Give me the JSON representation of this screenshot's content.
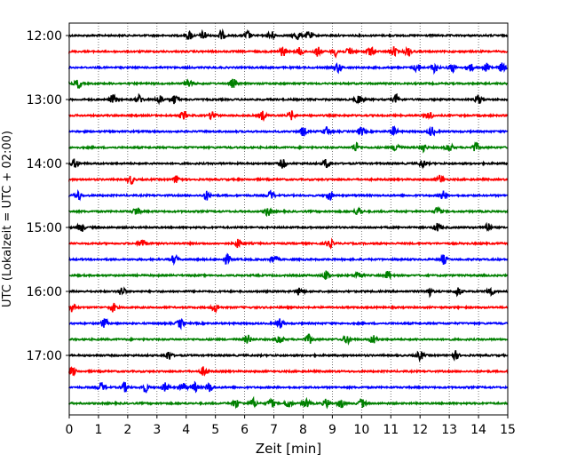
{
  "chart_data": {
    "type": "line",
    "subtype": "helicorder",
    "xlabel": "Zeit  [min]",
    "ylabel": "UTC (Lokalzeit = UTC + 02:00)",
    "xlim": [
      0,
      15
    ],
    "x_ticks": [
      "0",
      "1",
      "2",
      "3",
      "4",
      "5",
      "6",
      "7",
      "8",
      "9",
      "10",
      "11",
      "12",
      "13",
      "14",
      "15"
    ],
    "y_tick_labels": [
      "12:00",
      "13:00",
      "14:00",
      "15:00",
      "16:00",
      "17:00"
    ],
    "trace_interval_minutes": 15,
    "colors_cycle": [
      "#000000",
      "#ff0000",
      "#0000ff",
      "#008000"
    ],
    "grid": "vertical dotted at each minute",
    "traces": [
      {
        "start": "12:00",
        "color": "#000000",
        "events": [
          4.1,
          4.6,
          5.2,
          6.1,
          6.9,
          7.8,
          8.2
        ]
      },
      {
        "start": "12:15",
        "color": "#ff0000",
        "events": [
          7.3,
          7.9,
          8.5,
          9.1,
          9.6,
          10.3,
          11.1,
          11.6
        ]
      },
      {
        "start": "12:30",
        "color": "#0000ff",
        "events": [
          9.2,
          11.9,
          12.5,
          13.1,
          13.7,
          14.3,
          14.8
        ]
      },
      {
        "start": "12:45",
        "color": "#008000",
        "events": [
          0.3,
          4.1,
          5.6
        ]
      },
      {
        "start": "13:00",
        "color": "#000000",
        "events": [
          1.5,
          2.4,
          3.1,
          3.6,
          9.9,
          11.2,
          14.0
        ]
      },
      {
        "start": "13:15",
        "color": "#ff0000",
        "events": [
          3.9,
          4.9,
          6.6,
          7.6,
          12.3
        ]
      },
      {
        "start": "13:30",
        "color": "#0000ff",
        "events": [
          8.0,
          8.8,
          10.0,
          11.1,
          12.4
        ]
      },
      {
        "start": "13:45",
        "color": "#008000",
        "events": [
          9.8,
          11.2,
          12.1,
          13.0,
          13.9
        ]
      },
      {
        "start": "14:00",
        "color": "#000000",
        "events": [
          0.2,
          7.3,
          8.8,
          12.1
        ]
      },
      {
        "start": "14:15",
        "color": "#ff0000",
        "events": [
          2.1,
          3.7,
          12.7
        ]
      },
      {
        "start": "14:30",
        "color": "#0000ff",
        "events": [
          0.3,
          4.7,
          6.9,
          8.9,
          12.8
        ]
      },
      {
        "start": "14:45",
        "color": "#008000",
        "events": [
          2.3,
          6.8,
          9.9,
          12.6
        ]
      },
      {
        "start": "15:00",
        "color": "#000000",
        "events": [
          0.4,
          12.6,
          14.3
        ]
      },
      {
        "start": "15:15",
        "color": "#ff0000",
        "events": [
          2.5,
          5.8,
          8.9
        ]
      },
      {
        "start": "15:30",
        "color": "#0000ff",
        "events": [
          3.6,
          5.4,
          7.0,
          12.8
        ]
      },
      {
        "start": "15:45",
        "color": "#008000",
        "events": [
          8.8,
          9.9,
          10.9
        ]
      },
      {
        "start": "16:00",
        "color": "#000000",
        "events": [
          1.8,
          7.9,
          12.3,
          13.3,
          14.4
        ]
      },
      {
        "start": "16:15",
        "color": "#ff0000",
        "events": [
          0.1,
          1.5,
          5.0
        ]
      },
      {
        "start": "16:30",
        "color": "#0000ff",
        "events": [
          1.2,
          3.8,
          7.2
        ]
      },
      {
        "start": "16:45",
        "color": "#008000",
        "events": [
          6.1,
          7.2,
          8.2,
          9.5,
          10.4
        ]
      },
      {
        "start": "17:00",
        "color": "#000000",
        "events": [
          3.4,
          12.0,
          13.2
        ]
      },
      {
        "start": "17:15",
        "color": "#ff0000",
        "events": [
          0.1,
          4.6
        ]
      },
      {
        "start": "17:30",
        "color": "#0000ff",
        "events": [
          1.1,
          1.9,
          2.6,
          3.3,
          3.9,
          4.3,
          4.8
        ]
      },
      {
        "start": "17:45",
        "color": "#008000",
        "events": [
          5.7,
          6.3,
          6.9,
          7.5,
          8.1,
          8.8,
          9.3,
          10.0
        ]
      }
    ]
  }
}
